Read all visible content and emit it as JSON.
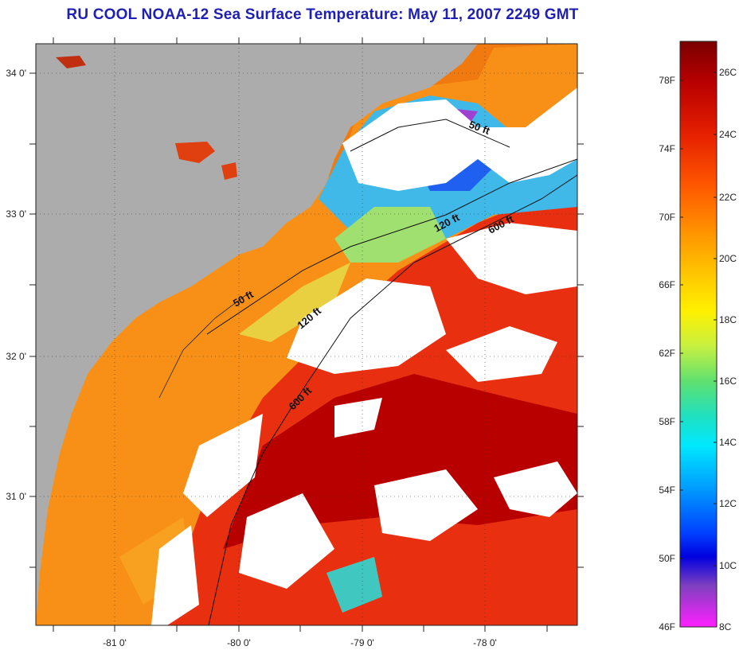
{
  "title": "RU COOL  NOAA-12  Sea Surface Temperature:  May 11, 2007 2249 GMT",
  "map": {
    "lat_ticks": [
      "34 0'",
      "33 0'",
      "32 0'",
      "31 0'"
    ],
    "lon_ticks": [
      "-81 0'",
      "-80 0'",
      "-79 0'",
      "-78 0'"
    ],
    "isobaths": [
      "50 ft",
      "120 ft",
      "600 ft",
      "50 ft",
      "120 ft",
      "600 ft"
    ]
  },
  "colorbar": {
    "fahrenheit": [
      "78F",
      "74F",
      "70F",
      "66F",
      "62F",
      "58F",
      "54F",
      "50F",
      "46F"
    ],
    "celsius": [
      "26C",
      "24C",
      "22C",
      "20C",
      "18C",
      "16C",
      "14C",
      "12C",
      "10C",
      "8C"
    ],
    "colors": [
      "#7a0000",
      "#b80000",
      "#e62000",
      "#ff5a00",
      "#ff9600",
      "#ffc800",
      "#fff000",
      "#c8f040",
      "#60e070",
      "#20e0c0",
      "#00e8ff",
      "#00a0ff",
      "#0040ff",
      "#0000e0",
      "#8040c0",
      "#ff20ff"
    ]
  },
  "colors": {
    "land": "#acacac",
    "cloud": "#ffffff",
    "title": "#1f1fb4"
  }
}
